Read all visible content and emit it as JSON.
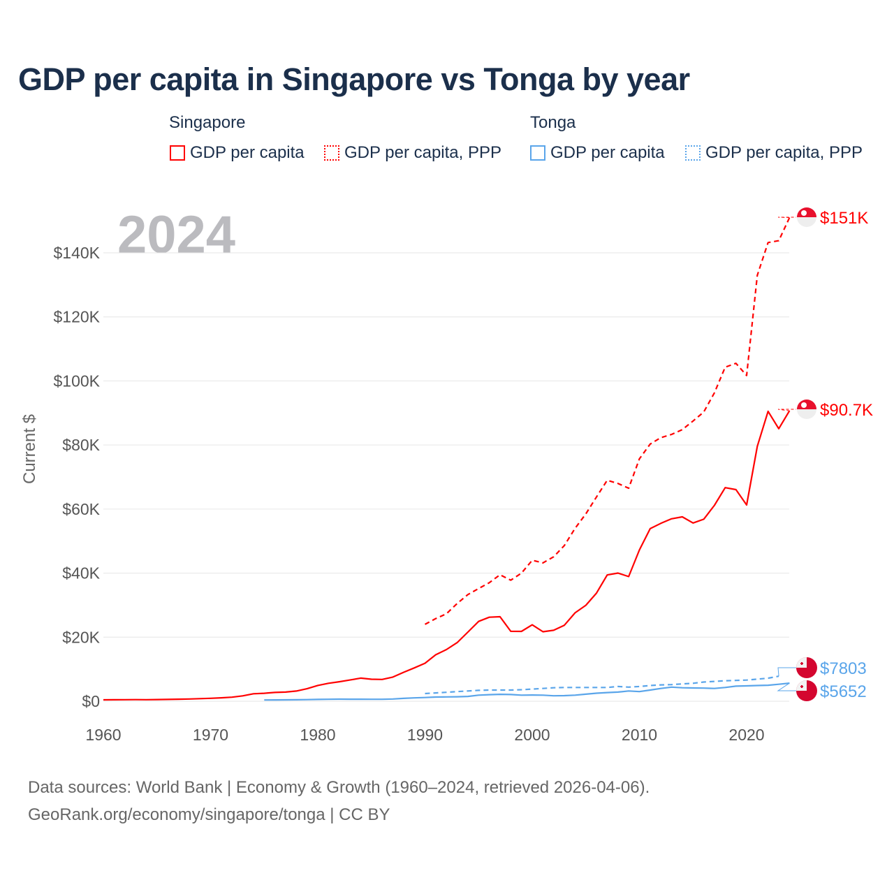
{
  "chart_data": {
    "type": "line",
    "title": "GDP per capita in Singapore vs Tonga by year",
    "ylabel": "Current $",
    "xlabel": "",
    "year_watermark": "2024",
    "xlim": [
      1960,
      2024
    ],
    "ylim": [
      0,
      150000
    ],
    "x_ticks": [
      1960,
      1970,
      1980,
      1990,
      2000,
      2010,
      2020
    ],
    "x_tick_labels": [
      "1960",
      "1970",
      "1980",
      "1990",
      "2000",
      "2010",
      "2020"
    ],
    "y_ticks": [
      0,
      20000,
      40000,
      60000,
      80000,
      100000,
      120000,
      140000
    ],
    "y_tick_labels": [
      "$0",
      "$20K",
      "$40K",
      "$60K",
      "$80K",
      "$100K",
      "$120K",
      "$140K"
    ],
    "legend_groups": [
      {
        "name": "Singapore",
        "items": [
          "GDP per capita",
          "GDP per capita, PPP"
        ]
      },
      {
        "name": "Tonga",
        "items": [
          "GDP per capita",
          "GDP per capita, PPP"
        ]
      }
    ],
    "series": [
      {
        "name": "Singapore GDP per capita",
        "country": "Singapore",
        "color": "#ff0000",
        "dash": false,
        "end_label": "$90.7K",
        "x_start": 1960,
        "values": [
          428,
          449,
          472,
          511,
          485,
          516,
          566,
          626,
          708,
          810,
          925,
          1071,
          1264,
          1685,
          2342,
          2490,
          2746,
          2846,
          3193,
          3900,
          4928,
          5596,
          6078,
          6633,
          7228,
          6866,
          6800,
          7540,
          9019,
          10394,
          11862,
          14502,
          16135,
          18302,
          21578,
          24915,
          26233,
          26376,
          21829,
          21797,
          23853,
          21700,
          22160,
          23730,
          27609,
          29961,
          33769,
          39433,
          40008,
          38927,
          47237,
          53891,
          55546,
          56967,
          57563,
          55647,
          56828,
          61176,
          66679,
          66070,
          61274,
          79601,
          90530,
          85100,
          90700
        ]
      },
      {
        "name": "Singapore GDP per capita, PPP",
        "country": "Singapore",
        "color": "#ff0000",
        "dash": true,
        "end_label": "$151K",
        "x_start": 1990,
        "values": [
          24000,
          25800,
          27300,
          30500,
          33300,
          35200,
          37000,
          39500,
          37800,
          40000,
          44000,
          43200,
          45100,
          48600,
          54000,
          58500,
          63800,
          69000,
          68000,
          66500,
          75700,
          80300,
          82300,
          83300,
          84800,
          87500,
          90300,
          96300,
          104300,
          105500,
          101700,
          133000,
          143200,
          143800,
          151000
        ]
      },
      {
        "name": "Tonga GDP per capita",
        "country": "Tonga",
        "color": "#5aa5ea",
        "dash": false,
        "end_label": "$5652",
        "x_start": 1975,
        "values": [
          400,
          410,
          430,
          450,
          500,
          560,
          620,
          650,
          640,
          630,
          600,
          620,
          700,
          900,
          1050,
          1150,
          1300,
          1350,
          1400,
          1500,
          1900,
          2050,
          2150,
          2100,
          1900,
          1950,
          1900,
          1700,
          1750,
          1900,
          2200,
          2500,
          2700,
          2850,
          3200,
          3000,
          3500,
          4000,
          4400,
          4200,
          4150,
          4100,
          4000,
          4300,
          4700,
          4800,
          4900,
          5000,
          5300,
          5652
        ]
      },
      {
        "name": "Tonga GDP per capita, PPP",
        "country": "Tonga",
        "color": "#5aa5ea",
        "dash": true,
        "end_label": "$7803",
        "x_start": 1990,
        "values": [
          2400,
          2600,
          2800,
          3000,
          3200,
          3400,
          3500,
          3500,
          3500,
          3600,
          3800,
          4000,
          4200,
          4300,
          4300,
          4300,
          4300,
          4300,
          4600,
          4400,
          4600,
          4900,
          5100,
          5200,
          5400,
          5600,
          6000,
          6200,
          6400,
          6500,
          6600,
          6900,
          7200,
          7803
        ]
      }
    ]
  },
  "source": {
    "line1": "Data sources: World Bank | Economy & Growth (1960–2024, retrieved 2026-04-06).",
    "line2": "GeoRank.org/economy/singapore/tonga | CC BY"
  }
}
